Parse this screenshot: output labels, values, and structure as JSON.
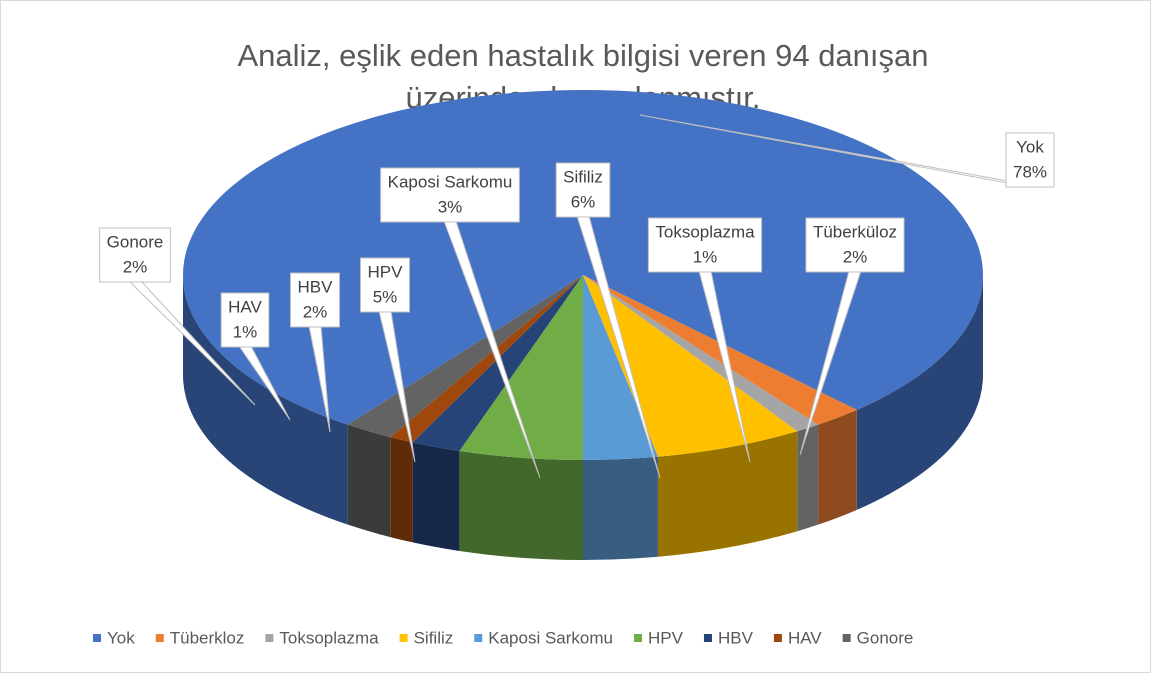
{
  "chart_data": {
    "type": "pie",
    "title": [
      "Analiz, eşlik eden hastalık bilgisi veren 94 danışan",
      "üzerinden hesaplanmıştır."
    ],
    "categories": [
      "Yok",
      "Tüberkloz",
      "Toksoplazma",
      "Sifiliz",
      "Kaposi Sarkomu",
      "HPV",
      "HBV",
      "HAV",
      "Gonore"
    ],
    "data_label_categories": [
      "Yok",
      "Tüberküloz",
      "Toksoplazma",
      "Sifiliz",
      "Kaposi Sarkomu",
      "HPV",
      "HBV",
      "HAV",
      "Gonore"
    ],
    "values": [
      78,
      2,
      1,
      6,
      3,
      5,
      2,
      1,
      2
    ],
    "value_labels": [
      "78%",
      "2%",
      "1%",
      "6%",
      "3%",
      "5%",
      "2%",
      "1%",
      "2%"
    ],
    "colors": [
      "#4472c4",
      "#ed7d31",
      "#a5a5a5",
      "#ffc000",
      "#5b9bd5",
      "#70ad47",
      "#264478",
      "#9e480e",
      "#636363"
    ],
    "legend": "bottom"
  }
}
